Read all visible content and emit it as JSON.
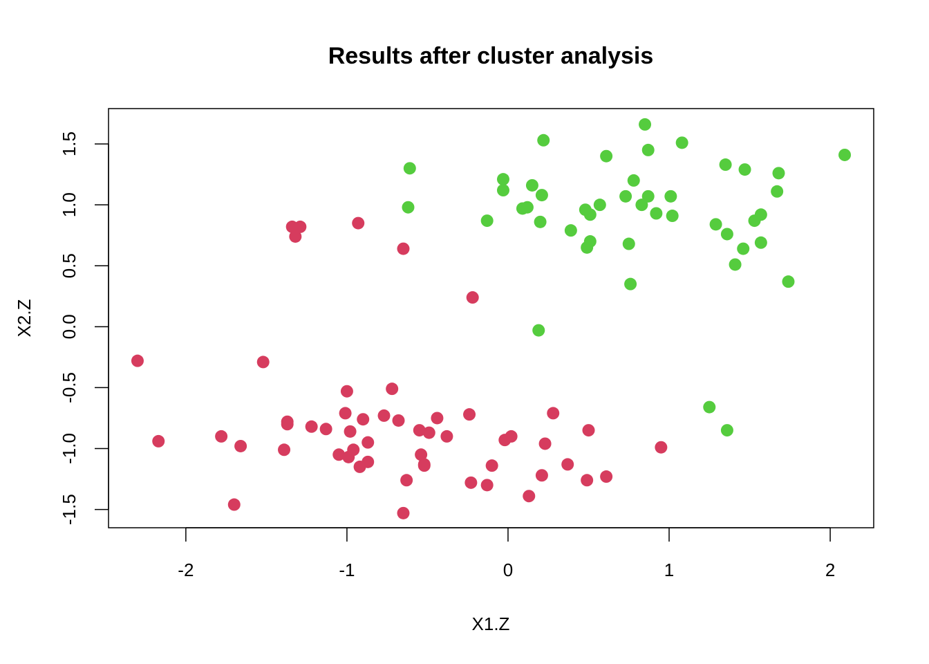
{
  "chart_data": {
    "type": "scatter",
    "title": "Results after cluster analysis",
    "xlabel": "X1.Z",
    "ylabel": "X2.Z",
    "xlim": [
      -2.48,
      2.27
    ],
    "ylim": [
      -1.65,
      1.79
    ],
    "x_ticks": [
      -2,
      -1,
      0,
      1,
      2
    ],
    "x_tick_labels": [
      "-2",
      "-1",
      "0",
      "1",
      "2"
    ],
    "y_ticks": [
      -1.5,
      -1.0,
      -0.5,
      0.0,
      0.5,
      1.0,
      1.5
    ],
    "y_tick_labels": [
      "-1.5",
      "-1.0",
      "-0.5",
      "0.0",
      "0.5",
      "1.0",
      "1.5"
    ],
    "grid": false,
    "legend": "none",
    "colors": {
      "cluster_1": "#d63c5e",
      "cluster_2": "#55cc3e"
    },
    "series": [
      {
        "color": "#d63c5e",
        "points": [
          [
            -2.3,
            -0.28
          ],
          [
            -2.17,
            -0.94
          ],
          [
            -1.78,
            -0.9
          ],
          [
            -1.7,
            -1.46
          ],
          [
            -1.66,
            -0.98
          ],
          [
            -1.52,
            -0.29
          ],
          [
            -1.39,
            -1.01
          ],
          [
            -1.37,
            -0.78
          ],
          [
            -1.37,
            -0.8
          ],
          [
            -1.34,
            0.82
          ],
          [
            -1.32,
            0.74
          ],
          [
            -1.29,
            0.82
          ],
          [
            -1.22,
            -0.82
          ],
          [
            -1.13,
            -0.84
          ],
          [
            -1.05,
            -1.05
          ],
          [
            -1.01,
            -0.71
          ],
          [
            -1.0,
            -0.53
          ],
          [
            -0.99,
            -1.07
          ],
          [
            -0.98,
            -0.86
          ],
          [
            -0.96,
            -1.01
          ],
          [
            -0.93,
            0.85
          ],
          [
            -0.92,
            -1.15
          ],
          [
            -0.9,
            -0.76
          ],
          [
            -0.87,
            -1.11
          ],
          [
            -0.87,
            -0.95
          ],
          [
            -0.77,
            -0.73
          ],
          [
            -0.72,
            -0.51
          ],
          [
            -0.68,
            -0.77
          ],
          [
            -0.65,
            0.64
          ],
          [
            -0.65,
            -1.53
          ],
          [
            -0.63,
            -1.26
          ],
          [
            -0.55,
            -0.85
          ],
          [
            -0.54,
            -1.05
          ],
          [
            -0.52,
            -1.13
          ],
          [
            -0.52,
            -1.14
          ],
          [
            -0.49,
            -0.87
          ],
          [
            -0.44,
            -0.75
          ],
          [
            -0.38,
            -0.9
          ],
          [
            -0.24,
            -0.72
          ],
          [
            -0.23,
            -1.28
          ],
          [
            -0.22,
            0.24
          ],
          [
            -0.13,
            -1.3
          ],
          [
            -0.1,
            -1.14
          ],
          [
            -0.02,
            -0.93
          ],
          [
            0.02,
            -0.9
          ],
          [
            0.13,
            -1.39
          ],
          [
            0.21,
            -1.22
          ],
          [
            0.23,
            -0.96
          ],
          [
            0.28,
            -0.71
          ],
          [
            0.37,
            -1.13
          ],
          [
            0.49,
            -1.26
          ],
          [
            0.5,
            -0.85
          ],
          [
            0.61,
            -1.23
          ],
          [
            0.95,
            -0.99
          ]
        ]
      },
      {
        "color": "#55cc3e",
        "points": [
          [
            -0.61,
            1.3
          ],
          [
            -0.62,
            0.98
          ],
          [
            -0.13,
            0.87
          ],
          [
            -0.03,
            1.21
          ],
          [
            -0.03,
            1.12
          ],
          [
            0.09,
            0.97
          ],
          [
            0.12,
            0.98
          ],
          [
            0.15,
            1.16
          ],
          [
            0.19,
            -0.03
          ],
          [
            0.2,
            0.86
          ],
          [
            0.21,
            1.08
          ],
          [
            0.22,
            1.53
          ],
          [
            0.39,
            0.79
          ],
          [
            0.48,
            0.96
          ],
          [
            0.49,
            0.65
          ],
          [
            0.51,
            0.7
          ],
          [
            0.51,
            0.92
          ],
          [
            0.57,
            1.0
          ],
          [
            0.61,
            1.4
          ],
          [
            0.73,
            1.07
          ],
          [
            0.75,
            0.68
          ],
          [
            0.76,
            0.35
          ],
          [
            0.78,
            1.2
          ],
          [
            0.83,
            1.0
          ],
          [
            0.85,
            1.66
          ],
          [
            0.87,
            1.45
          ],
          [
            0.87,
            1.07
          ],
          [
            0.92,
            0.93
          ],
          [
            1.01,
            1.07
          ],
          [
            1.02,
            0.91
          ],
          [
            1.08,
            1.51
          ],
          [
            1.25,
            -0.66
          ],
          [
            1.29,
            0.84
          ],
          [
            1.35,
            1.33
          ],
          [
            1.36,
            -0.85
          ],
          [
            1.36,
            0.76
          ],
          [
            1.41,
            0.51
          ],
          [
            1.46,
            0.64
          ],
          [
            1.47,
            1.29
          ],
          [
            1.53,
            0.87
          ],
          [
            1.57,
            0.92
          ],
          [
            1.57,
            0.69
          ],
          [
            1.67,
            1.11
          ],
          [
            1.68,
            1.26
          ],
          [
            1.74,
            0.37
          ],
          [
            2.09,
            1.41
          ]
        ]
      }
    ]
  }
}
